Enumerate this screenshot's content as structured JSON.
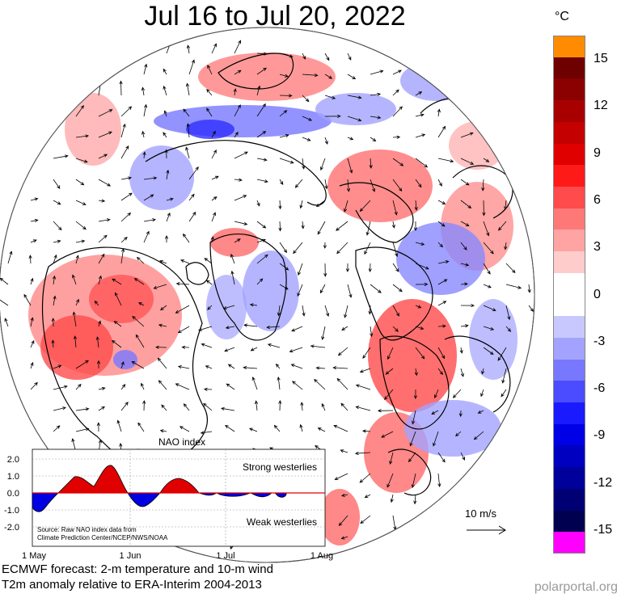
{
  "title": "Jul 16 to Jul 20, 2022",
  "colorbar": {
    "unit": "°C",
    "ticks": [
      "15",
      "12",
      "9",
      "6",
      "3",
      "0",
      "-3",
      "-6",
      "-9",
      "-12",
      "-15"
    ],
    "colors": [
      "#ff8c00",
      "#6e0000",
      "#8b0000",
      "#a80000",
      "#c40000",
      "#e00000",
      "#ff1a1a",
      "#ff4b4b",
      "#ff7878",
      "#ffa3a3",
      "#ffcccc",
      "#ffffff",
      "#ffffff",
      "#c8c8ff",
      "#a3a3ff",
      "#7878ff",
      "#4b4bff",
      "#1a1aff",
      "#0000e6",
      "#0000c0",
      "#00009a",
      "#000074",
      "#000050",
      "#ff00ff"
    ]
  },
  "nao": {
    "title": "NAO index",
    "yticks": [
      "2.0",
      "1.0",
      "0.0",
      "-1.0",
      "-2.0"
    ],
    "xticks": [
      "1 May",
      "1 Jun",
      "1 Jul",
      "1 Aug"
    ],
    "strong_label": "Strong westerlies",
    "weak_label": "Weak westerlies",
    "source_line1": "Source: Raw NAO index data from",
    "source_line2": "Climate Prediction Center/NCEP/NWS/NOAA",
    "colors": {
      "positive": "#e00000",
      "negative": "#0000e0"
    }
  },
  "wind_scale_label": "10 m/s",
  "footer": {
    "line1": "ECMWF forecast: 2-m temperature and 10-m wind",
    "line2": "T2m anomaly relative to ERA-Interim 2004-2013"
  },
  "credit": "polarportal.org"
}
